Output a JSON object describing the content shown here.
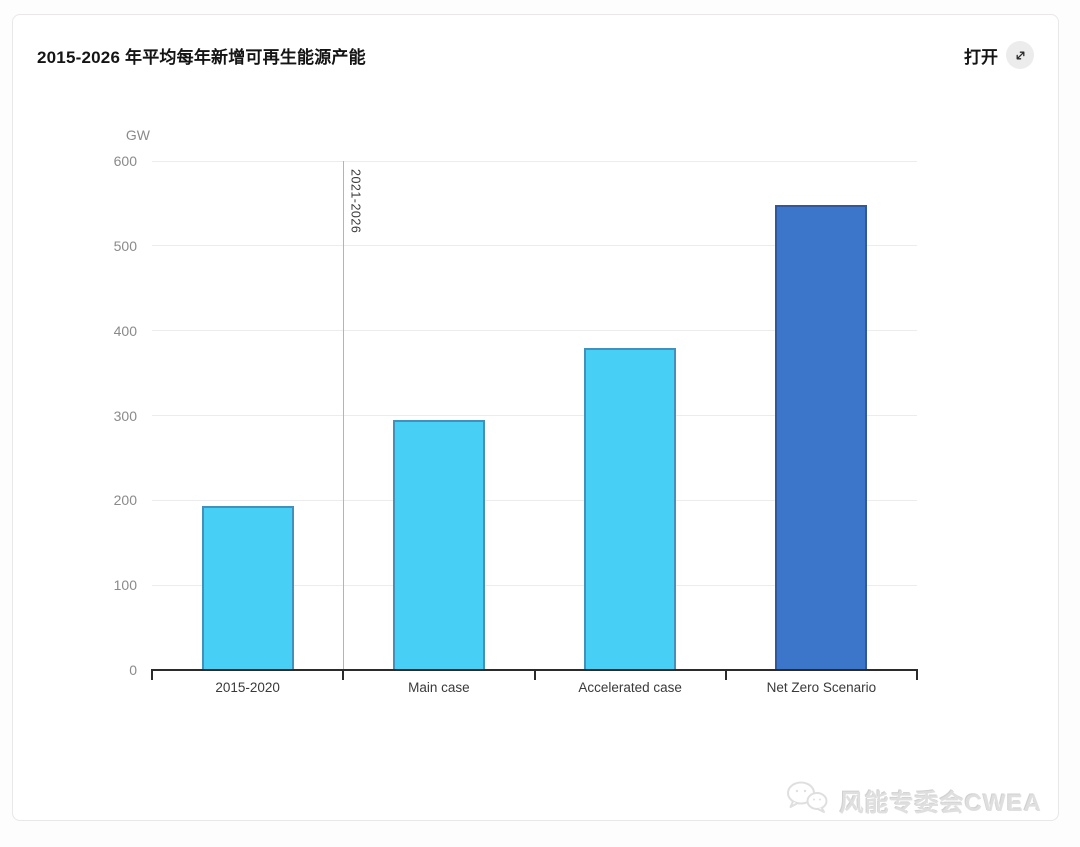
{
  "card": {
    "title": "2015-2026 年平均每年新增可再生能源产能",
    "open_button": {
      "label": "打开",
      "icon": "expand-diagonal-arrow-icon"
    }
  },
  "chart_data": {
    "type": "bar",
    "title": "2015-2026 年平均每年新增可再生能源产能",
    "unit_label": "GW",
    "categories": [
      "2015-2020",
      "Main case",
      "Accelerated case",
      "Net Zero Scenario"
    ],
    "values": [
      193,
      295,
      380,
      548
    ],
    "bar_colors": [
      "#47cff5",
      "#47cff5",
      "#47cff5",
      "#3c76cb"
    ],
    "bar_border_colors": [
      "#4391ba",
      "#4391ba",
      "#4391ba",
      "#31589a"
    ],
    "ylim": [
      0,
      600
    ],
    "ytick_step": 100,
    "grid": true,
    "legend": false,
    "divider": {
      "label": "2021-2026",
      "at_boundary_after_category": 0,
      "line_color": "#b9b3ad"
    },
    "xlabel": "",
    "ylabel": "GW"
  },
  "watermark": {
    "text": "风能专委会CWEA",
    "icon": "wechat-icon"
  }
}
